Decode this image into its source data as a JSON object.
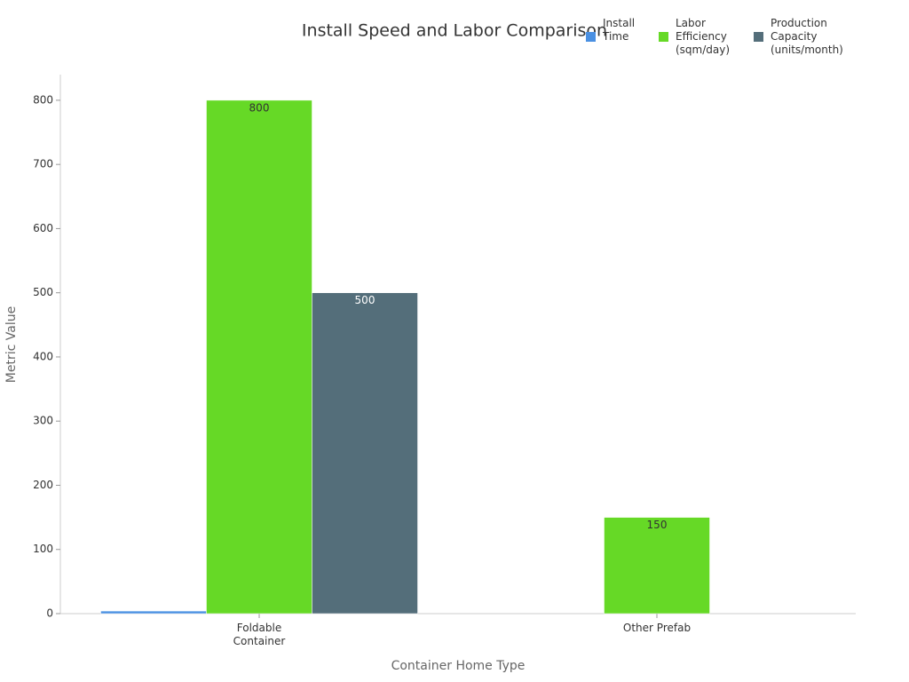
{
  "chart_data": {
    "type": "bar",
    "title": "Install Speed and Labor Comparison",
    "x_label": "Container Home Type",
    "y_label": "Metric Value",
    "categories": [
      "Foldable Container",
      "Other Prefab"
    ],
    "series": [
      {
        "name": "Install Time",
        "color": "#4a90e2",
        "values": [
          4,
          null
        ],
        "labels": false
      },
      {
        "name": "Labor Efficiency (sqm/day)",
        "color": "#66d926",
        "values": [
          800,
          150
        ],
        "labels": true
      },
      {
        "name": "Production Capacity (units/month)",
        "color": "#546e7a",
        "values": [
          500,
          null
        ],
        "labels": true
      }
    ],
    "ylim": [
      0,
      840
    ],
    "yticks": [
      0,
      100,
      200,
      300,
      400,
      500,
      600,
      700,
      800
    ],
    "grid": false
  }
}
